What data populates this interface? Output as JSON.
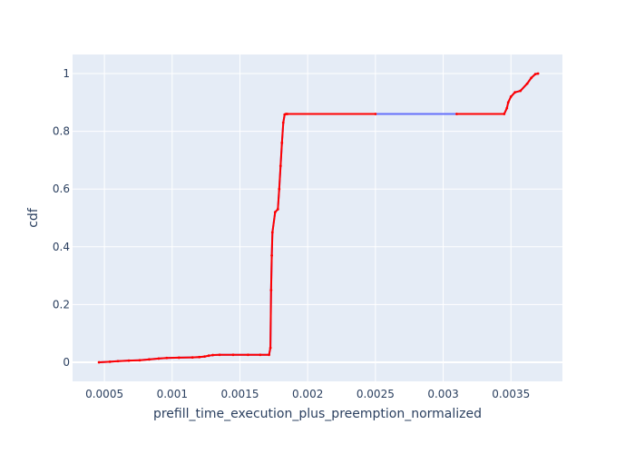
{
  "chart_data": {
    "type": "line",
    "title": "",
    "xlabel": "prefill_time_execution_plus_preemption_normalized",
    "ylabel": "cdf",
    "xlim": [
      0.000265,
      0.00388
    ],
    "ylim": [
      -0.066,
      1.066
    ],
    "x_ticks": [
      0.0005,
      0.001,
      0.0015,
      0.002,
      0.0025,
      0.003,
      0.0035
    ],
    "x_tick_labels": [
      "0.0005",
      "0.001",
      "0.0015",
      "0.002",
      "0.0025",
      "0.003",
      "0.0035"
    ],
    "y_ticks": [
      0,
      0.2,
      0.4,
      0.6,
      0.8,
      1
    ],
    "y_tick_labels": [
      "0",
      "0.2",
      "0.4",
      "0.6",
      "0.8",
      "1"
    ],
    "grid": true,
    "legend": "none",
    "colors": {
      "plot_bg": "#E5ECF6",
      "grid": "#ffffff",
      "line": "#636EFA",
      "markers": "#FF0000",
      "text": "#2a3f5f"
    },
    "series": [
      {
        "x": [
          0.00046,
          0.00054,
          0.0006,
          0.00068,
          0.00076,
          0.00083,
          0.0009,
          0.00096,
          0.00105,
          0.00115,
          0.0012,
          0.00124,
          0.00127,
          0.0013,
          0.00135,
          0.00145,
          0.00156,
          0.00165,
          0.001715,
          0.001725,
          0.00173,
          0.001735,
          0.00174,
          0.00176,
          0.00178,
          0.00179,
          0.0018,
          0.00181,
          0.00182,
          0.00183,
          0.00184,
          0.00185,
          0.0025,
          0.0031,
          0.00345,
          0.00347,
          0.00348,
          0.0035,
          0.00353,
          0.00357,
          0.00362,
          0.00365,
          0.00368,
          0.0037
        ],
        "y": [
          0.0,
          0.002,
          0.004,
          0.006,
          0.007,
          0.01,
          0.013,
          0.015,
          0.016,
          0.017,
          0.018,
          0.02,
          0.023,
          0.025,
          0.026,
          0.026,
          0.026,
          0.026,
          0.026,
          0.05,
          0.25,
          0.37,
          0.45,
          0.52,
          0.53,
          0.6,
          0.68,
          0.76,
          0.83,
          0.858,
          0.86,
          0.86,
          0.86,
          0.86,
          0.86,
          0.88,
          0.9,
          0.92,
          0.935,
          0.94,
          0.965,
          0.985,
          0.998,
          1.0
        ]
      }
    ]
  }
}
